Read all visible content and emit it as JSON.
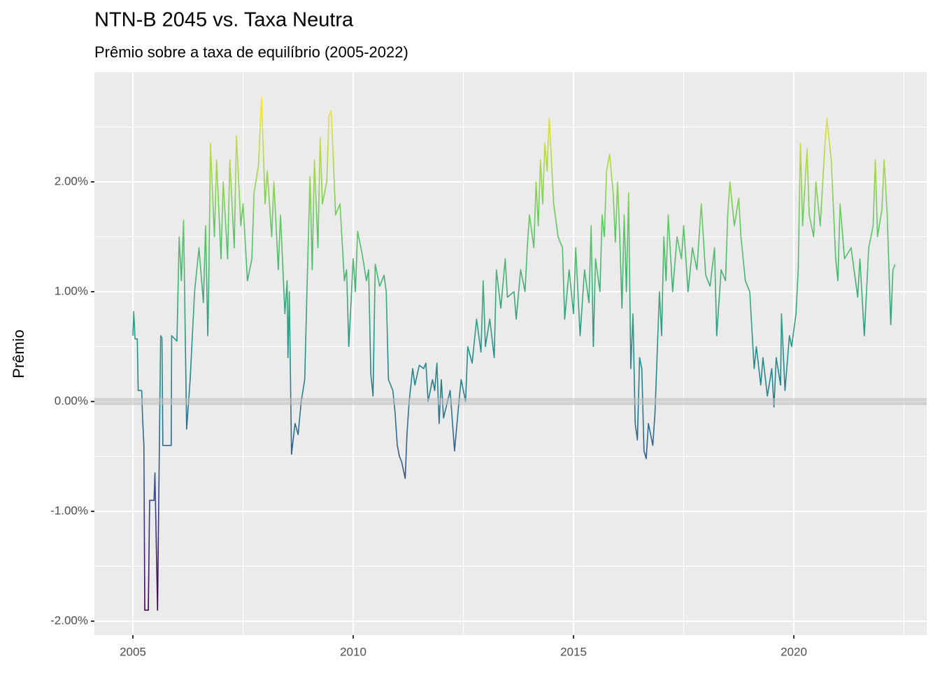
{
  "chart_data": {
    "type": "line",
    "title": "NTN-B 2045 vs. Taxa Neutra",
    "subtitle": "Prêmio sobre a taxa de equilíbrio (2005-2022)",
    "y_label": "Prêmio",
    "x": [
      2005.0,
      2005.02,
      2005.05,
      2005.1,
      2005.12,
      2005.2,
      2005.22,
      2005.25,
      2005.27,
      2005.35,
      2005.38,
      2005.48,
      2005.5,
      2005.56,
      2005.58,
      2005.63,
      2005.66,
      2005.68,
      2005.87,
      2005.88,
      2006.0,
      2006.05,
      2006.1,
      2006.15,
      2006.22,
      2006.3,
      2006.4,
      2006.5,
      2006.6,
      2006.65,
      2006.7,
      2006.72,
      2006.76,
      2006.85,
      2006.9,
      2007.0,
      2007.05,
      2007.15,
      2007.2,
      2007.3,
      2007.35,
      2007.45,
      2007.5,
      2007.6,
      2007.7,
      2007.75,
      2007.85,
      2007.92,
      2008.0,
      2008.05,
      2008.15,
      2008.2,
      2008.3,
      2008.35,
      2008.45,
      2008.5,
      2008.52,
      2008.55,
      2008.6,
      2008.68,
      2008.75,
      2008.82,
      2008.9,
      2008.95,
      2009.02,
      2009.07,
      2009.12,
      2009.2,
      2009.25,
      2009.3,
      2009.4,
      2009.45,
      2009.5,
      2009.55,
      2009.6,
      2009.7,
      2009.8,
      2009.85,
      2009.9,
      2010.0,
      2010.05,
      2010.1,
      2010.2,
      2010.3,
      2010.35,
      2010.4,
      2010.45,
      2010.5,
      2010.6,
      2010.7,
      2010.75,
      2010.8,
      2010.9,
      2010.95,
      2011.0,
      2011.05,
      2011.1,
      2011.18,
      2011.22,
      2011.27,
      2011.35,
      2011.4,
      2011.5,
      2011.6,
      2011.65,
      2011.7,
      2011.8,
      2011.85,
      2011.9,
      2011.95,
      2012.0,
      2012.05,
      2012.2,
      2012.3,
      2012.4,
      2012.45,
      2012.55,
      2012.6,
      2012.7,
      2012.8,
      2012.9,
      2012.95,
      2013.0,
      2013.1,
      2013.2,
      2013.25,
      2013.35,
      2013.45,
      2013.5,
      2013.65,
      2013.7,
      2013.8,
      2013.9,
      2013.95,
      2014.0,
      2014.1,
      2014.15,
      2014.2,
      2014.25,
      2014.3,
      2014.35,
      2014.4,
      2014.45,
      2014.55,
      2014.65,
      2014.75,
      2014.8,
      2014.9,
      2015.0,
      2015.05,
      2015.15,
      2015.25,
      2015.35,
      2015.4,
      2015.45,
      2015.5,
      2015.6,
      2015.65,
      2015.7,
      2015.75,
      2015.82,
      2015.9,
      2015.95,
      2016.0,
      2016.05,
      2016.1,
      2016.15,
      2016.2,
      2016.25,
      2016.3,
      2016.35,
      2016.4,
      2016.45,
      2016.5,
      2016.55,
      2016.6,
      2016.65,
      2016.7,
      2016.8,
      2016.85,
      2016.95,
      2017.0,
      2017.05,
      2017.1,
      2017.15,
      2017.25,
      2017.35,
      2017.45,
      2017.5,
      2017.6,
      2017.7,
      2017.8,
      2017.9,
      2018.0,
      2018.1,
      2018.2,
      2018.25,
      2018.35,
      2018.45,
      2018.5,
      2018.55,
      2018.65,
      2018.75,
      2018.8,
      2018.9,
      2019.0,
      2019.1,
      2019.15,
      2019.25,
      2019.3,
      2019.4,
      2019.5,
      2019.55,
      2019.6,
      2019.7,
      2019.72,
      2019.8,
      2019.9,
      2019.95,
      2020.05,
      2020.1,
      2020.15,
      2020.2,
      2020.3,
      2020.35,
      2020.45,
      2020.5,
      2020.6,
      2020.7,
      2020.75,
      2020.85,
      2020.95,
      2021.0,
      2021.05,
      2021.15,
      2021.3,
      2021.45,
      2021.5,
      2021.6,
      2021.7,
      2021.8,
      2021.85,
      2021.9,
      2022.0,
      2022.05,
      2022.12,
      2022.2,
      2022.25,
      2022.3
    ],
    "values": [
      0.6,
      0.82,
      0.57,
      0.57,
      0.1,
      0.1,
      -0.15,
      -0.4,
      -1.9,
      -1.9,
      -0.9,
      -0.9,
      -0.65,
      -1.9,
      -1.15,
      0.6,
      0.58,
      -0.4,
      -0.4,
      0.6,
      0.55,
      1.5,
      1.1,
      1.65,
      -0.25,
      0.2,
      1.0,
      1.4,
      0.9,
      1.6,
      0.6,
      1.0,
      2.35,
      1.5,
      2.2,
      1.3,
      2.0,
      1.3,
      2.2,
      1.4,
      2.42,
      1.6,
      1.8,
      1.1,
      1.3,
      1.9,
      2.15,
      2.77,
      1.8,
      2.1,
      1.5,
      2.0,
      1.2,
      1.7,
      0.8,
      1.1,
      0.4,
      1.0,
      -0.48,
      -0.2,
      -0.3,
      0.0,
      0.2,
      1.0,
      2.05,
      1.2,
      2.2,
      1.4,
      2.4,
      1.8,
      2.0,
      2.6,
      2.65,
      2.2,
      1.7,
      1.8,
      1.1,
      1.2,
      0.5,
      1.3,
      1.0,
      1.55,
      1.35,
      1.1,
      1.2,
      0.25,
      0.05,
      1.25,
      1.05,
      1.15,
      1.0,
      0.2,
      0.1,
      -0.1,
      -0.4,
      -0.5,
      -0.55,
      -0.7,
      -0.3,
      0.0,
      0.3,
      0.15,
      0.33,
      0.3,
      0.35,
      0.0,
      0.2,
      0.1,
      0.35,
      -0.2,
      0.2,
      -0.15,
      0.1,
      -0.45,
      0.0,
      0.2,
      0.0,
      0.5,
      0.35,
      0.75,
      0.45,
      1.1,
      0.5,
      0.75,
      0.4,
      1.2,
      0.85,
      1.3,
      0.95,
      1.0,
      0.75,
      1.2,
      1.0,
      1.4,
      1.7,
      1.4,
      2.0,
      1.6,
      2.2,
      1.8,
      2.35,
      2.1,
      2.58,
      1.8,
      1.5,
      1.4,
      0.75,
      1.2,
      0.8,
      1.4,
      0.6,
      1.2,
      0.9,
      1.6,
      0.5,
      1.3,
      1.0,
      1.7,
      1.5,
      2.1,
      2.25,
      1.9,
      1.45,
      2.0,
      1.5,
      0.85,
      1.7,
      1.0,
      1.9,
      0.3,
      0.8,
      -0.2,
      -0.35,
      0.4,
      0.3,
      -0.45,
      -0.52,
      -0.2,
      -0.4,
      -0.1,
      1.0,
      0.6,
      1.5,
      1.1,
      1.7,
      1.0,
      1.5,
      1.3,
      1.6,
      1.0,
      1.4,
      1.2,
      1.8,
      1.15,
      1.05,
      1.4,
      0.6,
      1.2,
      1.1,
      1.7,
      2.0,
      1.6,
      1.85,
      1.5,
      1.1,
      1.0,
      0.3,
      0.5,
      0.15,
      0.4,
      0.05,
      0.3,
      -0.05,
      0.4,
      0.15,
      0.8,
      0.1,
      0.6,
      0.5,
      0.8,
      1.2,
      2.35,
      1.6,
      2.3,
      1.7,
      1.5,
      2.0,
      1.6,
      2.3,
      2.58,
      2.2,
      1.3,
      1.1,
      1.8,
      1.3,
      1.4,
      0.95,
      1.3,
      0.6,
      1.4,
      1.6,
      2.2,
      1.5,
      1.75,
      2.2,
      1.7,
      0.7,
      1.2,
      1.25
    ],
    "colorscale": [
      "#440154",
      "#3b528b",
      "#21918c",
      "#5ec962",
      "#fde725"
    ],
    "xlim": [
      2004.127,
      2023.016
    ],
    "ylim": [
      -2.127,
      3.0
    ],
    "xticks": [
      2005,
      2010,
      2015,
      2020
    ],
    "xminorticks": [
      2007.5,
      2012.5,
      2017.5,
      2022.5
    ],
    "yticks": [
      {
        "value": -2,
        "label": "-2.00%"
      },
      {
        "value": -1,
        "label": "-1.00%"
      },
      {
        "value": 0,
        "label": "0.00%"
      },
      {
        "value": 1,
        "label": "1.00%"
      },
      {
        "value": 2,
        "label": "2.00%"
      }
    ],
    "yminorticks": [
      -1.5,
      -0.5,
      0.5,
      1.5,
      2.5
    ],
    "hline": 0,
    "grid": true
  }
}
